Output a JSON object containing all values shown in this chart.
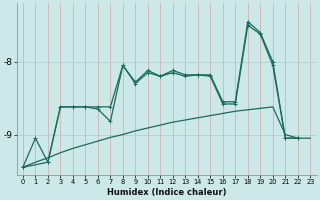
{
  "xlabel": "Humidex (Indice chaleur)",
  "bg_color": "#cce8e8",
  "grid_color": "#aacccc",
  "line_color": "#1a6b5a",
  "xlim": [
    -0.5,
    23.5
  ],
  "ylim": [
    -9.55,
    -7.2
  ],
  "yticks": [
    -9,
    -8
  ],
  "xtick_labels": [
    "0",
    "1",
    "2",
    "3",
    "4",
    "5",
    "6",
    "7",
    "8",
    "9",
    "10",
    "11",
    "12",
    "13",
    "14",
    "15",
    "16",
    "17",
    "18",
    "19",
    "20",
    "21",
    "22",
    "23"
  ],
  "line1_x": [
    0,
    1,
    2,
    3,
    4,
    5,
    6,
    7,
    8,
    9,
    10,
    11,
    12,
    13,
    14,
    15,
    16,
    17,
    18,
    19,
    20,
    21,
    22,
    23
  ],
  "line1_y": [
    -9.45,
    -9.38,
    -9.32,
    -9.25,
    -9.19,
    -9.14,
    -9.09,
    -9.04,
    -9.0,
    -8.95,
    -8.91,
    -8.87,
    -8.83,
    -8.8,
    -8.77,
    -8.74,
    -8.71,
    -8.68,
    -8.66,
    -8.64,
    -8.62,
    -9.0,
    -9.05,
    -9.05
  ],
  "line2_x": [
    0,
    1,
    2,
    3,
    4,
    5,
    6,
    7,
    8,
    9,
    10,
    11,
    12,
    13,
    14,
    15,
    16,
    17,
    18,
    19,
    20,
    21,
    22
  ],
  "line2_y": [
    -9.45,
    -9.05,
    -9.38,
    -8.62,
    -8.62,
    -8.62,
    -8.65,
    -8.82,
    -8.05,
    -8.3,
    -8.15,
    -8.2,
    -8.15,
    -8.2,
    -8.18,
    -8.2,
    -8.58,
    -8.58,
    -7.5,
    -7.62,
    -8.05,
    -9.05,
    -9.05
  ],
  "line3_x": [
    0,
    2,
    3,
    4,
    5,
    6,
    7,
    8,
    9,
    10,
    11,
    12,
    13,
    14,
    15,
    16,
    17,
    18,
    19,
    20,
    21,
    22
  ],
  "line3_y": [
    -9.45,
    -9.38,
    -8.62,
    -8.62,
    -8.62,
    -8.62,
    -8.62,
    -8.05,
    -8.28,
    -8.12,
    -8.2,
    -8.12,
    -8.18,
    -8.18,
    -8.18,
    -8.55,
    -8.55,
    -7.45,
    -7.6,
    -8.0,
    -9.05,
    -9.05
  ]
}
